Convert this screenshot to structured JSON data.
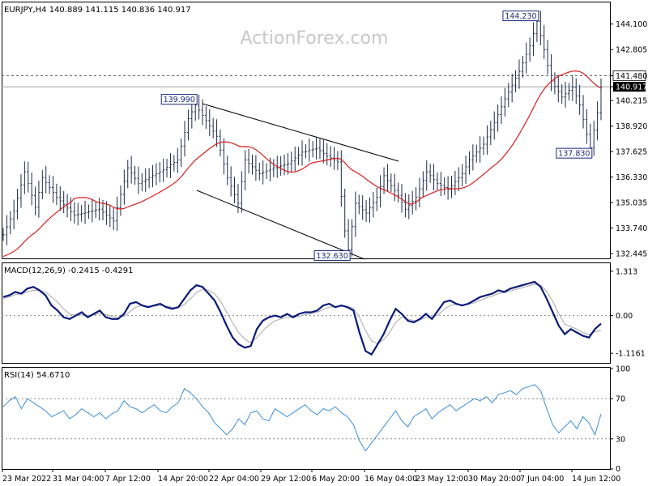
{
  "watermark": "ActionForex.com",
  "colors": {
    "candle": "#1e2a4a",
    "ma": "#d91e1e",
    "macd": "#0b1a7a",
    "signal": "#a8a8a8",
    "rsi": "#3a8fd8",
    "frame": "#000000",
    "grid_dash": "#555555",
    "label_text": "#1a2a7a"
  },
  "chart_data": [
    {
      "type": "candlestick",
      "title": "EURJPY,H4  140.889 141.115 140.836 140.917",
      "ylim": [
        132.2,
        145.2
      ],
      "y_ticks": [
        "144.100",
        "142.805",
        "141.480",
        "140.917",
        "140.215",
        "138.920",
        "137.625",
        "136.330",
        "135.035",
        "133.740",
        "132.445"
      ],
      "x_ticks": [
        "23 Mar 2022",
        "31 Mar 04:00",
        "7 Apr 12:00",
        "14 Apr 20:00",
        "22 Apr 04:00",
        "29 Apr 12:00",
        "6 May 20:00",
        "16 May 04:00",
        "23 May 12:00",
        "30 May 20:00",
        "7 Jun 04:00",
        "14 Jun 12:00"
      ],
      "annotations": [
        "139.990",
        "132.630",
        "144.230",
        "137.830"
      ],
      "reference_lines": {
        "dashed": 141.48,
        "last": 140.917
      },
      "price_path": [
        [
          0,
          133.4
        ],
        [
          3,
          134.6
        ],
        [
          6,
          136.6
        ],
        [
          9,
          134.8
        ],
        [
          11,
          136.3
        ],
        [
          15,
          135.3
        ],
        [
          20,
          134.4
        ],
        [
          27,
          134.7
        ],
        [
          31,
          134.1
        ],
        [
          35,
          136.8
        ],
        [
          38,
          136.0
        ],
        [
          42,
          136.4
        ],
        [
          45,
          136.7
        ],
        [
          49,
          137.2
        ],
        [
          52,
          139.3
        ],
        [
          54,
          139.99
        ],
        [
          57,
          139.2
        ],
        [
          60,
          138.4
        ],
        [
          63,
          136.3
        ],
        [
          66,
          135.0
        ],
        [
          68,
          137.2
        ],
        [
          72,
          136.5
        ],
        [
          76,
          136.8
        ],
        [
          80,
          137.0
        ],
        [
          84,
          137.6
        ],
        [
          88,
          137.8
        ],
        [
          91,
          137.4
        ],
        [
          94,
          137.1
        ],
        [
          96,
          133.6
        ],
        [
          97,
          132.63
        ],
        [
          99,
          135.0
        ],
        [
          102,
          134.5
        ],
        [
          105,
          135.3
        ],
        [
          107,
          136.4
        ],
        [
          111,
          135.4
        ],
        [
          113,
          134.7
        ],
        [
          116,
          135.3
        ],
        [
          119,
          136.6
        ],
        [
          122,
          136.0
        ],
        [
          125,
          135.7
        ],
        [
          129,
          136.5
        ],
        [
          131,
          137.2
        ],
        [
          135,
          138.0
        ],
        [
          138,
          139.1
        ],
        [
          141,
          140.3
        ],
        [
          145,
          141.7
        ],
        [
          148,
          143.0
        ],
        [
          150,
          144.23
        ],
        [
          152,
          142.8
        ],
        [
          154,
          141.2
        ],
        [
          157,
          140.4
        ],
        [
          160,
          140.9
        ],
        [
          162,
          140.0
        ],
        [
          164,
          138.5
        ],
        [
          165,
          137.83
        ],
        [
          167,
          139.6
        ],
        [
          168,
          140.917
        ]
      ],
      "ma_period": 20,
      "ma_start_value": 132.3
    },
    {
      "type": "line",
      "title": "MACD(12,26,9) -0.2415 -0.4291",
      "ylim": [
        -1.4,
        1.55
      ],
      "y_ticks": [
        "1.313",
        "0.00",
        "-1.1161"
      ],
      "series": [
        {
          "name": "",
          "role": "macd",
          "values": [
            0.55,
            0.6,
            0.7,
            0.65,
            0.8,
            0.85,
            0.75,
            0.6,
            0.3,
            0.15,
            -0.05,
            -0.1,
            0.0,
            0.1,
            -0.05,
            0.05,
            0.15,
            -0.05,
            -0.1,
            -0.1,
            0.05,
            0.35,
            0.4,
            0.3,
            0.25,
            0.3,
            0.35,
            0.25,
            0.2,
            0.25,
            0.5,
            0.75,
            0.9,
            0.85,
            0.65,
            0.45,
            0.1,
            -0.3,
            -0.65,
            -0.85,
            -0.95,
            -0.9,
            -0.4,
            -0.15,
            -0.05,
            0.0,
            -0.05,
            0.05,
            -0.05,
            0.05,
            0.1,
            0.1,
            0.15,
            0.3,
            0.35,
            0.25,
            0.3,
            0.25,
            0.15,
            -0.5,
            -1.05,
            -1.15,
            -0.85,
            -0.55,
            -0.15,
            0.2,
            0.05,
            -0.15,
            -0.2,
            -0.1,
            0.05,
            -0.1,
            0.15,
            0.4,
            0.45,
            0.35,
            0.3,
            0.35,
            0.45,
            0.55,
            0.6,
            0.65,
            0.75,
            0.7,
            0.8,
            0.85,
            0.9,
            0.95,
            1.0,
            0.85,
            0.5,
            0.1,
            -0.3,
            -0.55,
            -0.4,
            -0.5,
            -0.6,
            -0.65,
            -0.4,
            -0.24
          ]
        },
        {
          "name": "",
          "role": "signal",
          "values": [
            0.5,
            0.55,
            0.62,
            0.64,
            0.7,
            0.75,
            0.75,
            0.7,
            0.55,
            0.4,
            0.2,
            0.05,
            0.0,
            0.02,
            0.0,
            0.02,
            0.06,
            0.03,
            -0.02,
            -0.06,
            -0.02,
            0.12,
            0.25,
            0.3,
            0.28,
            0.28,
            0.3,
            0.28,
            0.25,
            0.24,
            0.33,
            0.5,
            0.68,
            0.78,
            0.75,
            0.65,
            0.42,
            0.1,
            -0.22,
            -0.5,
            -0.7,
            -0.8,
            -0.65,
            -0.45,
            -0.28,
            -0.15,
            -0.1,
            -0.05,
            -0.05,
            -0.02,
            0.03,
            0.06,
            0.1,
            0.18,
            0.25,
            0.26,
            0.28,
            0.27,
            0.22,
            -0.05,
            -0.45,
            -0.75,
            -0.82,
            -0.72,
            -0.5,
            -0.2,
            -0.05,
            -0.1,
            -0.15,
            -0.13,
            -0.05,
            -0.07,
            0.02,
            0.18,
            0.3,
            0.33,
            0.32,
            0.33,
            0.38,
            0.45,
            0.52,
            0.58,
            0.65,
            0.68,
            0.73,
            0.78,
            0.83,
            0.88,
            0.93,
            0.9,
            0.72,
            0.42,
            0.05,
            -0.25,
            -0.33,
            -0.4,
            -0.5,
            -0.56,
            -0.48,
            -0.43
          ]
        }
      ]
    },
    {
      "type": "line",
      "title": "RSI(14) 54.6710",
      "ylim": [
        0,
        100
      ],
      "y_ticks": [
        "100",
        "70",
        "30",
        "0"
      ],
      "reference_lines": [
        70,
        30
      ],
      "series": [
        {
          "name": "",
          "role": "rsi",
          "values": [
            62,
            68,
            72,
            60,
            70,
            66,
            62,
            58,
            52,
            55,
            58,
            50,
            54,
            60,
            56,
            52,
            56,
            50,
            55,
            58,
            68,
            62,
            60,
            56,
            60,
            64,
            58,
            56,
            62,
            66,
            80,
            76,
            70,
            62,
            56,
            46,
            40,
            34,
            40,
            50,
            44,
            56,
            58,
            50,
            48,
            60,
            56,
            52,
            56,
            60,
            64,
            58,
            54,
            60,
            58,
            62,
            56,
            52,
            44,
            28,
            18,
            26,
            34,
            42,
            50,
            58,
            48,
            42,
            52,
            56,
            60,
            50,
            56,
            60,
            64,
            58,
            62,
            66,
            70,
            68,
            72,
            66,
            74,
            76,
            78,
            74,
            80,
            82,
            84,
            78,
            60,
            44,
            36,
            42,
            48,
            40,
            52,
            46,
            34,
            54.7
          ]
        }
      ]
    }
  ]
}
